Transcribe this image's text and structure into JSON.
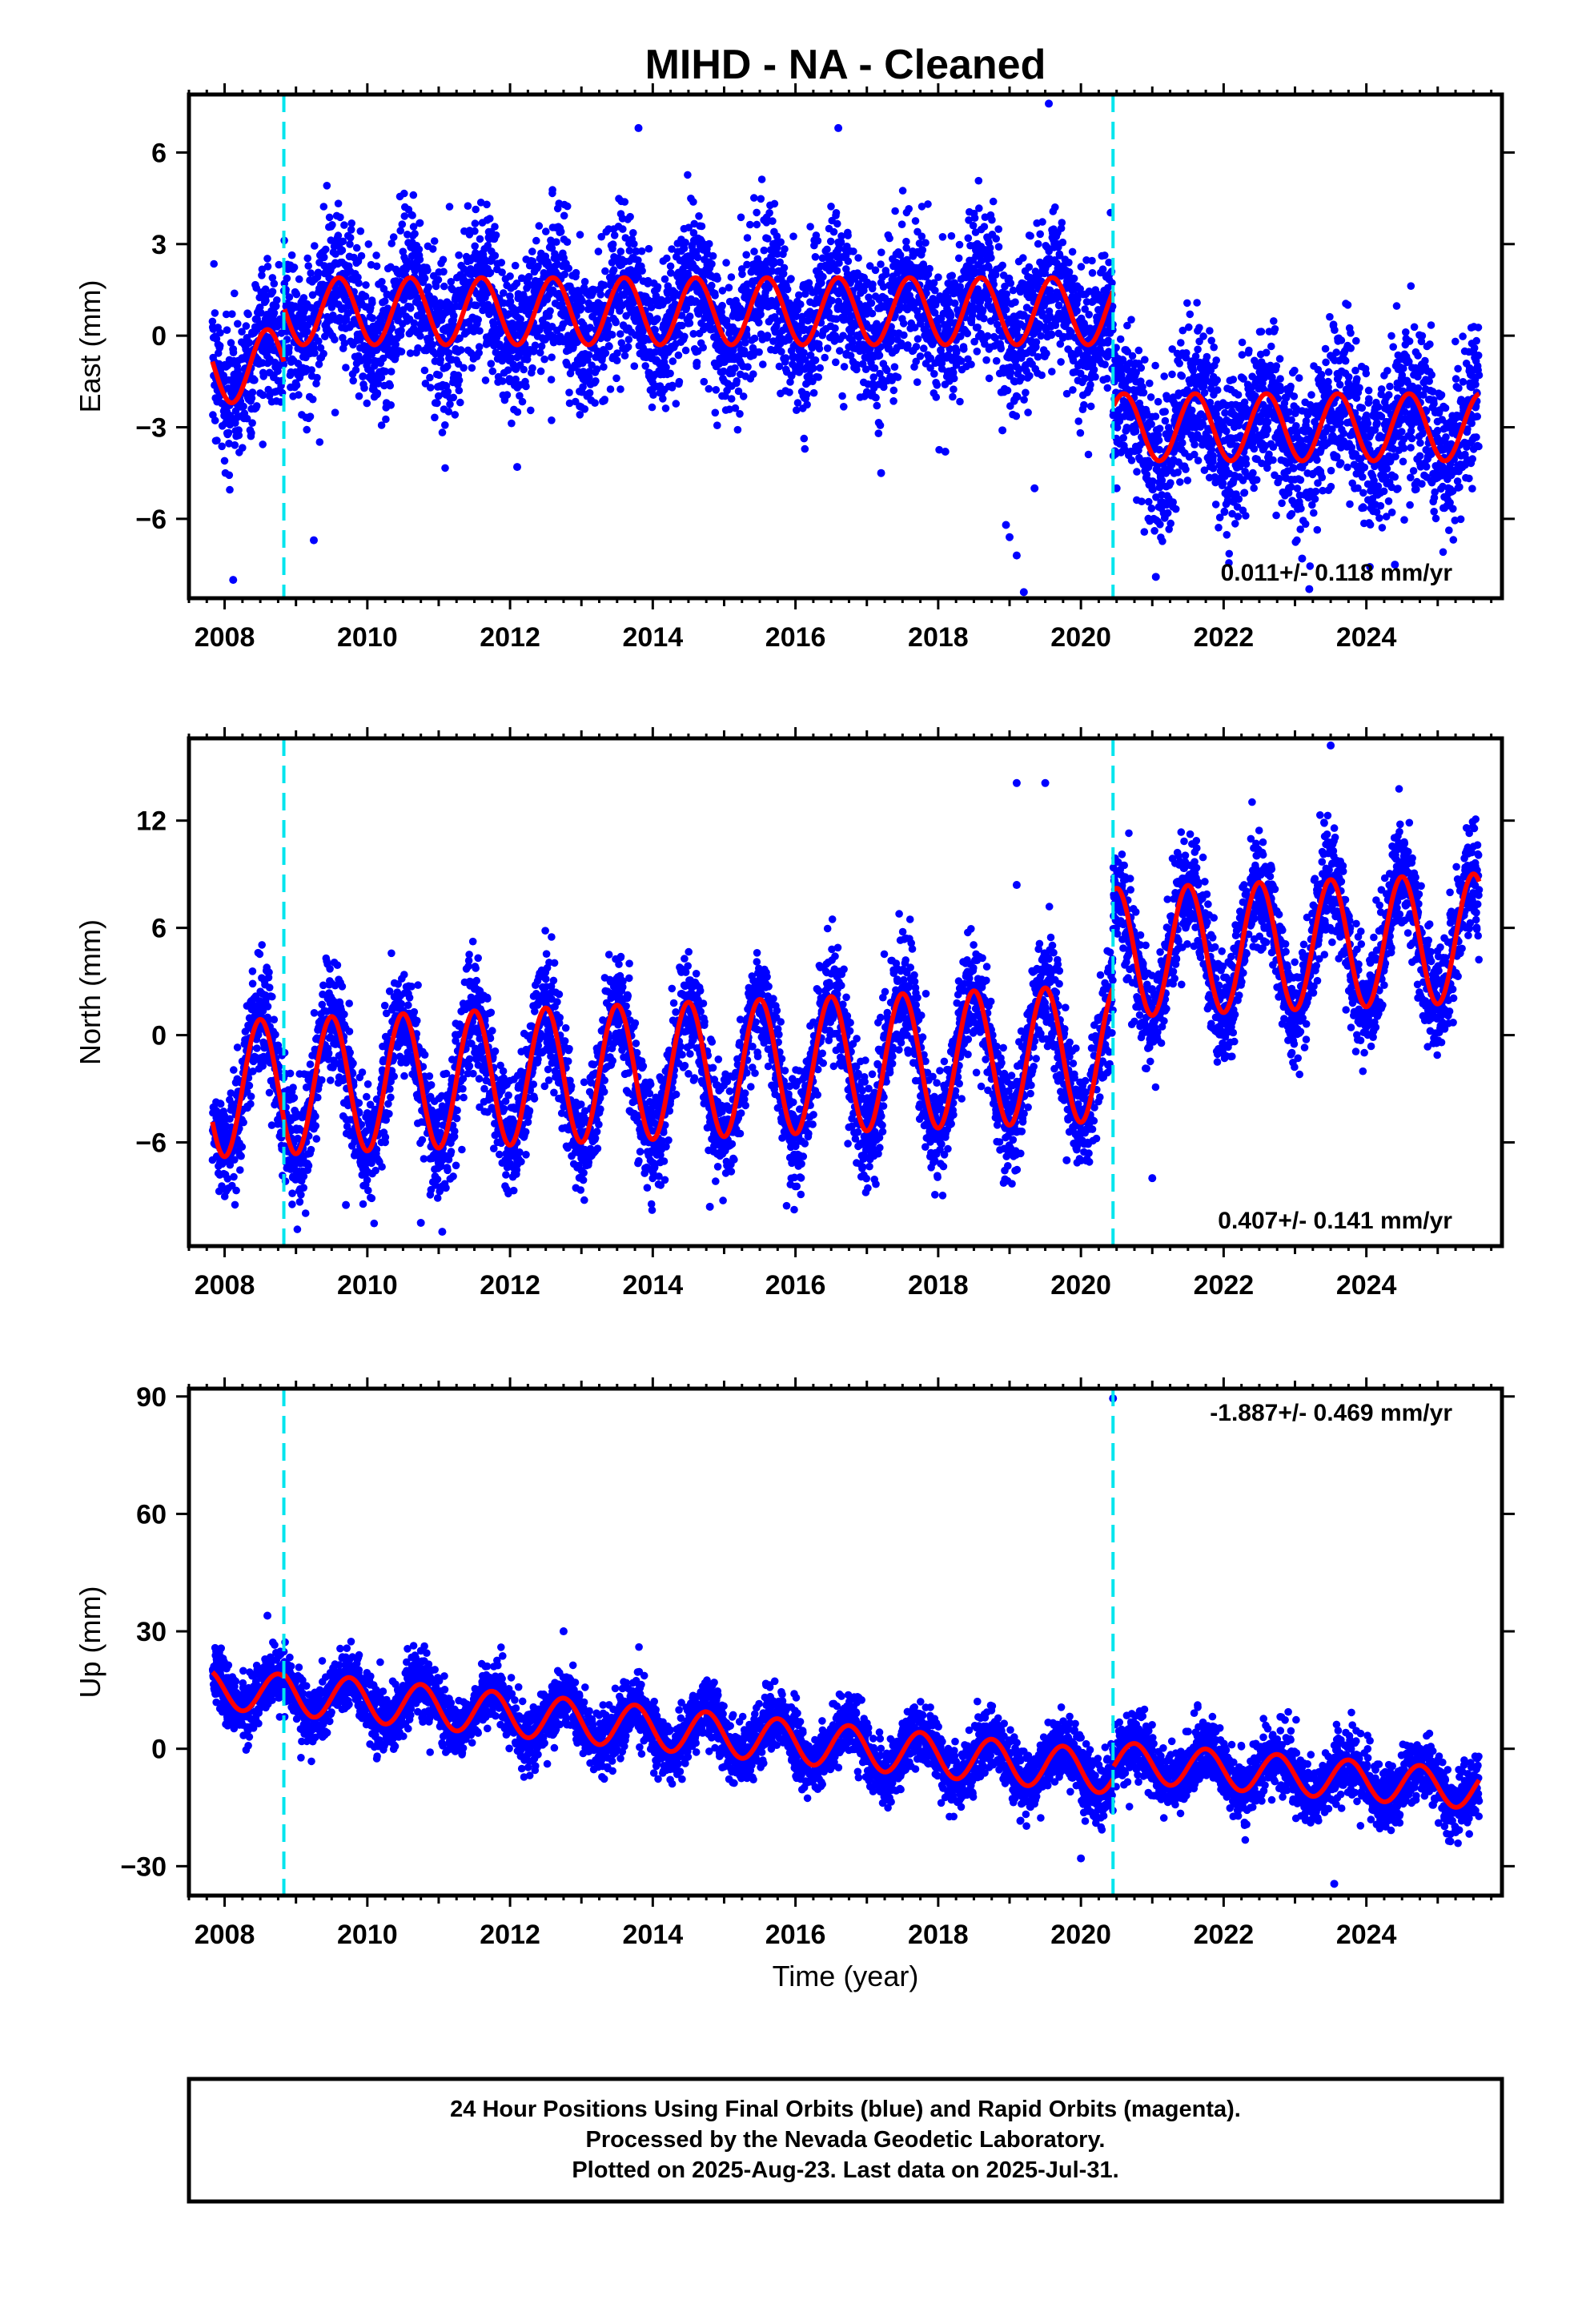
{
  "title": "MIHD  - NA - Cleaned",
  "xlabel": "Time (year)",
  "colors": {
    "final_orbits": "#0000ff",
    "model": "#ff0000",
    "offsets": "#00e5ee",
    "frame": "#000000"
  },
  "footer": {
    "line1": "24 Hour Positions Using Final Orbits (blue) and Rapid Orbits (magenta).",
    "line2": "Processed by the Nevada Geodetic Laboratory.",
    "line3": "Plotted on 2025-Aug-23. Last data on 2025-Jul-31."
  },
  "chart_data": [
    {
      "type": "scatter",
      "component": "east",
      "ylabel": "East (mm)",
      "xlim": [
        2007.5,
        2025.9
      ],
      "ylim": [
        -8.6,
        7.9
      ],
      "x_ticks": [
        "2008",
        "2010",
        "2012",
        "2014",
        "2016",
        "2018",
        "2020",
        "2022",
        "2024"
      ],
      "x_tick_values": [
        2008,
        2010,
        2012,
        2014,
        2016,
        2018,
        2020,
        2022,
        2024
      ],
      "y_ticks": [
        "6",
        "3",
        "0",
        "−3",
        "−6"
      ],
      "y_tick_values": [
        6,
        3,
        0,
        -3,
        -6
      ],
      "rate_text": "0.011+/- 0.118 mm/yr",
      "rate_position": "bottom-right",
      "offsets": [
        2008.83,
        2020.45
      ],
      "series": [
        {
          "values": {
            "data_span": [
              2007.83,
              2025.58
            ],
            "segments": [
              {
                "from": 2007.83,
                "to": 2008.83,
                "mean": -1.0,
                "annual_amp": 1.2,
                "peak": 2008.6
              },
              {
                "from": 2008.83,
                "to": 2020.45,
                "mean": 0.8,
                "annual_amp": 1.1,
                "peak": 2008.6
              },
              {
                "from": 2020.45,
                "to": 2025.58,
                "mean": -3.0,
                "annual_amp": 1.1,
                "peak": 2008.6
              }
            ],
            "scatter_sigma": 1.2,
            "approx_count": 6300
          }
        }
      ],
      "outliers": [
        [
          2008.12,
          -8.0
        ],
        [
          2009.25,
          -6.7
        ],
        [
          2012.1,
          -4.3
        ],
        [
          2013.8,
          6.8
        ],
        [
          2016.6,
          6.8
        ],
        [
          2017.2,
          -4.5
        ],
        [
          2018.1,
          -3.8
        ],
        [
          2018.9,
          -3.1
        ],
        [
          2018.95,
          -6.2
        ],
        [
          2019.0,
          -6.6
        ],
        [
          2019.1,
          -7.2
        ],
        [
          2019.2,
          -8.4
        ],
        [
          2019.35,
          -5.0
        ],
        [
          2019.55,
          7.6
        ],
        [
          2020.5,
          -5.0
        ],
        [
          2021.05,
          -7.9
        ],
        [
          2023.1,
          -7.3
        ],
        [
          2023.2,
          -8.3
        ],
        [
          2024.4,
          -7.5
        ]
      ]
    },
    {
      "type": "scatter",
      "component": "north",
      "ylabel": "North (mm)",
      "xlim": [
        2007.5,
        2025.9
      ],
      "ylim": [
        -11.8,
        16.6
      ],
      "x_ticks": [
        "2008",
        "2010",
        "2012",
        "2014",
        "2016",
        "2018",
        "2020",
        "2022",
        "2024"
      ],
      "x_tick_values": [
        2008,
        2010,
        2012,
        2014,
        2016,
        2018,
        2020,
        2022,
        2024
      ],
      "y_ticks": [
        "12",
        "6",
        "0",
        "−6"
      ],
      "y_tick_values": [
        12,
        6,
        0,
        -6
      ],
      "rate_text": "0.407+/- 0.141 mm/yr",
      "rate_position": "bottom-right",
      "offsets": [
        2008.83,
        2020.45
      ],
      "series": [
        {
          "values": {
            "data_span": [
              2007.83,
              2025.58
            ],
            "segments": [
              {
                "from": 2007.83,
                "to": 2020.45,
                "mean": -3.0,
                "trend": 0.16,
                "trend_ref": 2008,
                "annual_amp": 3.8,
                "peak": 2008.5
              },
              {
                "from": 2020.45,
                "to": 2025.58,
                "mean": 4.7,
                "trend": 0.16,
                "trend_ref": 2021,
                "annual_amp": 3.6,
                "peak": 2008.5
              }
            ],
            "scatter_sigma": 1.6,
            "approx_count": 6300
          }
        }
      ],
      "outliers": [
        [
          2009.7,
          -9.5
        ],
        [
          2010.75,
          -10.5
        ],
        [
          2011.05,
          -11.0
        ],
        [
          2014.8,
          -9.6
        ],
        [
          2019.1,
          14.1
        ],
        [
          2019.5,
          14.1
        ],
        [
          2019.1,
          8.4
        ],
        [
          2019.8,
          -7.0
        ],
        [
          2021.0,
          -8.0
        ],
        [
          2023.5,
          16.2
        ]
      ]
    },
    {
      "type": "scatter",
      "component": "up",
      "ylabel": "Up (mm)",
      "xlim": [
        2007.5,
        2025.9
      ],
      "ylim": [
        -37.5,
        92
      ],
      "x_ticks": [
        "2008",
        "2010",
        "2012",
        "2014",
        "2016",
        "2018",
        "2020",
        "2022",
        "2024"
      ],
      "x_tick_values": [
        2008,
        2010,
        2012,
        2014,
        2016,
        2018,
        2020,
        2022,
        2024
      ],
      "y_ticks": [
        "90",
        "60",
        "30",
        "0",
        "−30"
      ],
      "y_tick_values": [
        90,
        60,
        30,
        0,
        -30
      ],
      "rate_text": "-1.887+/- 0.469 mm/yr",
      "rate_position": "top-right",
      "offsets": [
        2008.83,
        2020.45
      ],
      "series": [
        {
          "values": {
            "data_span": [
              2007.83,
              2025.58
            ],
            "segments": [
              {
                "from": 2007.83,
                "to": 2008.83,
                "mean": 15.0,
                "trend": -1.2,
                "trend_ref": 2008,
                "annual_amp": 5.0,
                "peak": 2008.75
              },
              {
                "from": 2008.83,
                "to": 2020.45,
                "mean": 14.0,
                "trend": -1.75,
                "trend_ref": 2009,
                "annual_amp": 5.5,
                "peak": 2008.75
              },
              {
                "from": 2020.45,
                "to": 2025.58,
                "mean": -4.0,
                "trend": -1.4,
                "trend_ref": 2021,
                "annual_amp": 5.0,
                "peak": 2008.75
              }
            ],
            "scatter_sigma": 4.0,
            "approx_count": 6300
          }
        }
      ],
      "outliers": [
        [
          2008.6,
          34.0
        ],
        [
          2012.75,
          30.0
        ],
        [
          2020.0,
          -28.0
        ],
        [
          2020.45,
          89.5
        ],
        [
          2023.55,
          -34.5
        ]
      ]
    }
  ]
}
